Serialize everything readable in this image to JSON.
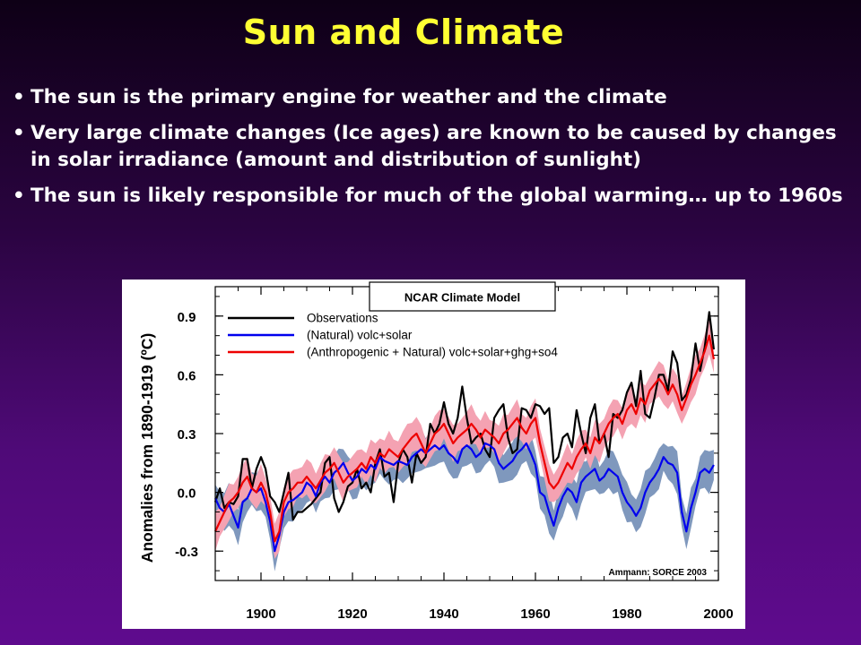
{
  "slide": {
    "title": "Sun and Climate",
    "bullets": [
      "The sun is the primary engine for weather and the climate",
      "Very large climate changes (Ice ages) are known to be caused by changes in solar irradiance (amount and distribution of sunlight)",
      "The sun is likely responsible for much of the global warming… up to 1960s"
    ],
    "colors": {
      "title": "#ffff33",
      "text": "#ffffff"
    }
  },
  "chart_data": {
    "type": "line",
    "title": "NCAR Climate Model",
    "ylabel": "Anomalies from 1890-1919 (ºC)",
    "xlabel": "",
    "credit": "Ammann: SORCE 2003",
    "xlim": [
      1890,
      2000
    ],
    "ylim": [
      -0.45,
      1.05
    ],
    "xticks": [
      1900,
      1920,
      1940,
      1960,
      1980,
      2000
    ],
    "yticks": [
      -0.3,
      0.0,
      0.3,
      0.6,
      0.9
    ],
    "ytick_labels": [
      "-0.3",
      "0.0",
      "0.3",
      "0.6",
      "0.9"
    ],
    "grid": false,
    "legend": "top-left",
    "series": [
      {
        "name": "Observations",
        "color": "#000000",
        "x": [
          1890,
          1891,
          1892,
          1893,
          1894,
          1895,
          1896,
          1897,
          1898,
          1899,
          1900,
          1901,
          1902,
          1903,
          1904,
          1905,
          1906,
          1907,
          1908,
          1909,
          1910,
          1911,
          1912,
          1913,
          1914,
          1915,
          1916,
          1917,
          1918,
          1919,
          1920,
          1921,
          1922,
          1923,
          1924,
          1925,
          1926,
          1927,
          1928,
          1929,
          1930,
          1931,
          1932,
          1933,
          1934,
          1935,
          1936,
          1937,
          1938,
          1939,
          1940,
          1941,
          1942,
          1943,
          1944,
          1945,
          1946,
          1947,
          1948,
          1949,
          1950,
          1951,
          1952,
          1953,
          1954,
          1955,
          1956,
          1957,
          1958,
          1959,
          1960,
          1961,
          1962,
          1963,
          1964,
          1965,
          1966,
          1967,
          1968,
          1969,
          1970,
          1971,
          1972,
          1973,
          1974,
          1975,
          1976,
          1977,
          1978,
          1979,
          1980,
          1981,
          1982,
          1983,
          1984,
          1985,
          1986,
          1987,
          1988,
          1989,
          1990,
          1991,
          1992,
          1993,
          1994,
          1995,
          1996,
          1997,
          1998,
          1999
        ],
        "values": [
          -0.05,
          0.02,
          -0.08,
          -0.05,
          -0.06,
          -0.02,
          0.17,
          0.17,
          0.02,
          0.12,
          0.18,
          0.12,
          -0.02,
          -0.05,
          -0.1,
          0.0,
          0.1,
          -0.14,
          -0.1,
          -0.1,
          -0.08,
          -0.06,
          -0.03,
          0.0,
          0.15,
          0.18,
          -0.03,
          -0.1,
          -0.05,
          0.03,
          0.05,
          0.12,
          0.02,
          0.05,
          0.0,
          0.15,
          0.22,
          0.08,
          0.1,
          -0.05,
          0.15,
          0.22,
          0.18,
          0.05,
          0.2,
          0.15,
          0.18,
          0.35,
          0.3,
          0.35,
          0.46,
          0.35,
          0.3,
          0.38,
          0.54,
          0.38,
          0.25,
          0.28,
          0.3,
          0.22,
          0.18,
          0.38,
          0.42,
          0.45,
          0.28,
          0.2,
          0.22,
          0.43,
          0.42,
          0.38,
          0.45,
          0.44,
          0.4,
          0.43,
          0.15,
          0.18,
          0.28,
          0.3,
          0.23,
          0.42,
          0.3,
          0.2,
          0.38,
          0.45,
          0.25,
          0.3,
          0.18,
          0.4,
          0.38,
          0.42,
          0.51,
          0.56,
          0.44,
          0.62,
          0.4,
          0.38,
          0.48,
          0.6,
          0.6,
          0.52,
          0.72,
          0.66,
          0.47,
          0.5,
          0.58,
          0.76,
          0.62,
          0.74,
          0.92,
          0.73
        ]
      },
      {
        "name": "(Natural) volc+solar",
        "color": "#0000ee",
        "x": [
          1890,
          1891,
          1892,
          1893,
          1894,
          1895,
          1896,
          1897,
          1898,
          1899,
          1900,
          1901,
          1902,
          1903,
          1904,
          1905,
          1906,
          1907,
          1908,
          1909,
          1910,
          1911,
          1912,
          1913,
          1914,
          1915,
          1916,
          1917,
          1918,
          1919,
          1920,
          1921,
          1922,
          1923,
          1924,
          1925,
          1926,
          1927,
          1928,
          1929,
          1930,
          1931,
          1932,
          1933,
          1934,
          1935,
          1936,
          1937,
          1938,
          1939,
          1940,
          1941,
          1942,
          1943,
          1944,
          1945,
          1946,
          1947,
          1948,
          1949,
          1950,
          1951,
          1952,
          1953,
          1954,
          1955,
          1956,
          1957,
          1958,
          1959,
          1960,
          1961,
          1962,
          1963,
          1964,
          1965,
          1966,
          1967,
          1968,
          1969,
          1970,
          1971,
          1972,
          1973,
          1974,
          1975,
          1976,
          1977,
          1978,
          1979,
          1980,
          1981,
          1982,
          1983,
          1984,
          1985,
          1986,
          1987,
          1988,
          1989,
          1990,
          1991,
          1992,
          1993,
          1994,
          1995,
          1996,
          1997,
          1998,
          1999
        ],
        "values": [
          -0.03,
          -0.08,
          -0.1,
          -0.06,
          -0.12,
          -0.18,
          -0.05,
          -0.03,
          0.02,
          0.0,
          0.02,
          -0.05,
          -0.15,
          -0.3,
          -0.22,
          -0.1,
          -0.05,
          -0.04,
          -0.02,
          0.0,
          0.05,
          0.03,
          -0.02,
          0.05,
          0.08,
          0.05,
          0.1,
          0.12,
          0.15,
          0.1,
          0.06,
          0.08,
          0.12,
          0.1,
          0.14,
          0.12,
          0.18,
          0.16,
          0.15,
          0.14,
          0.16,
          0.15,
          0.14,
          0.18,
          0.2,
          0.22,
          0.2,
          0.22,
          0.24,
          0.22,
          0.24,
          0.2,
          0.18,
          0.15,
          0.22,
          0.24,
          0.22,
          0.18,
          0.2,
          0.25,
          0.24,
          0.22,
          0.15,
          0.12,
          0.14,
          0.16,
          0.2,
          0.22,
          0.25,
          0.2,
          0.14,
          0.0,
          -0.02,
          -0.1,
          -0.17,
          -0.08,
          -0.02,
          0.02,
          0.0,
          -0.05,
          0.05,
          0.08,
          0.1,
          0.12,
          0.06,
          0.08,
          0.12,
          0.1,
          0.08,
          0.0,
          -0.05,
          -0.08,
          -0.12,
          -0.08,
          0.0,
          0.05,
          0.08,
          0.12,
          0.18,
          0.15,
          0.14,
          0.1,
          -0.1,
          -0.2,
          -0.08,
          0.0,
          0.1,
          0.12,
          0.1,
          0.14
        ]
      },
      {
        "name": "(Anthropogenic + Natural) volc+solar+ghg+so4",
        "color": "#ee0000",
        "x": [
          1890,
          1891,
          1892,
          1893,
          1894,
          1895,
          1896,
          1897,
          1898,
          1899,
          1900,
          1901,
          1902,
          1903,
          1904,
          1905,
          1906,
          1907,
          1908,
          1909,
          1910,
          1911,
          1912,
          1913,
          1914,
          1915,
          1916,
          1917,
          1918,
          1919,
          1920,
          1921,
          1922,
          1923,
          1924,
          1925,
          1926,
          1927,
          1928,
          1929,
          1930,
          1931,
          1932,
          1933,
          1934,
          1935,
          1936,
          1937,
          1938,
          1939,
          1940,
          1941,
          1942,
          1943,
          1944,
          1945,
          1946,
          1947,
          1948,
          1949,
          1950,
          1951,
          1952,
          1953,
          1954,
          1955,
          1956,
          1957,
          1958,
          1959,
          1960,
          1961,
          1962,
          1963,
          1964,
          1965,
          1966,
          1967,
          1968,
          1969,
          1970,
          1971,
          1972,
          1973,
          1974,
          1975,
          1976,
          1977,
          1978,
          1979,
          1980,
          1981,
          1982,
          1983,
          1984,
          1985,
          1986,
          1987,
          1988,
          1989,
          1990,
          1991,
          1992,
          1993,
          1994,
          1995,
          1996,
          1997,
          1998,
          1999
        ],
        "values": [
          -0.2,
          -0.15,
          -0.1,
          -0.05,
          -0.03,
          0.0,
          0.05,
          0.08,
          0.02,
          0.0,
          0.05,
          0.0,
          -0.1,
          -0.25,
          -0.2,
          -0.05,
          0.0,
          0.02,
          0.05,
          0.05,
          0.08,
          0.05,
          0.02,
          0.06,
          0.1,
          0.12,
          0.15,
          0.1,
          0.05,
          0.08,
          0.1,
          0.12,
          0.15,
          0.12,
          0.18,
          0.15,
          0.2,
          0.18,
          0.22,
          0.2,
          0.18,
          0.22,
          0.25,
          0.28,
          0.3,
          0.25,
          0.2,
          0.25,
          0.3,
          0.32,
          0.35,
          0.3,
          0.25,
          0.28,
          0.3,
          0.32,
          0.35,
          0.32,
          0.28,
          0.32,
          0.3,
          0.28,
          0.25,
          0.3,
          0.32,
          0.35,
          0.38,
          0.33,
          0.3,
          0.35,
          0.38,
          0.25,
          0.15,
          0.05,
          0.02,
          0.05,
          0.1,
          0.15,
          0.12,
          0.18,
          0.22,
          0.25,
          0.2,
          0.28,
          0.25,
          0.3,
          0.35,
          0.38,
          0.4,
          0.35,
          0.42,
          0.45,
          0.4,
          0.48,
          0.45,
          0.52,
          0.55,
          0.58,
          0.55,
          0.5,
          0.55,
          0.5,
          0.42,
          0.48,
          0.55,
          0.6,
          0.66,
          0.72,
          0.8,
          0.68
        ]
      }
    ]
  }
}
